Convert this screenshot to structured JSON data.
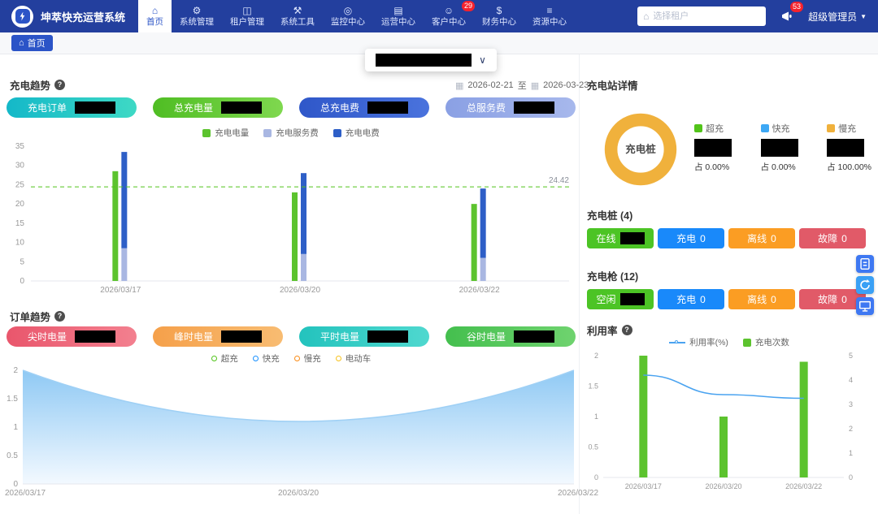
{
  "theme": {
    "navbar_bg": "#233f9e",
    "primary": "#2b54c7",
    "badge_red": "#f5222d"
  },
  "icons": {
    "help": "?",
    "home": "⌂",
    "calendar": "▦",
    "chevron_down": "∨",
    "caret_down": "▼",
    "building": "⌂"
  },
  "header": {
    "app_title": "坤萃快充运营系统",
    "nav_items": [
      {
        "label": "首页",
        "icon": "home-icon",
        "glyph": "⌂",
        "active": true
      },
      {
        "label": "系统管理",
        "icon": "system-settings-icon",
        "glyph": "⚙"
      },
      {
        "label": "租户管理",
        "icon": "tenant-icon",
        "glyph": "◫"
      },
      {
        "label": "系统工具",
        "icon": "tools-icon",
        "glyph": "⚒"
      },
      {
        "label": "监控中心",
        "icon": "monitor-center-icon",
        "glyph": "◎"
      },
      {
        "label": "运营中心",
        "icon": "operations-icon",
        "glyph": "▤"
      },
      {
        "label": "客户中心",
        "icon": "customer-icon",
        "glyph": "☺",
        "badge": "29"
      },
      {
        "label": "财务中心",
        "icon": "finance-icon",
        "glyph": "$"
      },
      {
        "label": "资源中心",
        "icon": "resource-icon",
        "glyph": "≡"
      }
    ],
    "tenant_search_placeholder": "选择租户",
    "notice_badge": "53",
    "user_name": "超级管理员"
  },
  "breadcrumb": {
    "home_label": "首页"
  },
  "charge_trend": {
    "title": "充电趋势",
    "date_from": "2026-02-21",
    "date_separator": "至",
    "date_to": "2026-03-23",
    "stats": [
      {
        "label": "充电订单",
        "color1": "#14b8c8",
        "color2": "#3ed9c5",
        "value_redacted": true
      },
      {
        "label": "总充电量",
        "color1": "#4fbd23",
        "color2": "#7fd84f",
        "value_redacted": true
      },
      {
        "label": "总充电费",
        "color1": "#2f57c9",
        "color2": "#4a73dd",
        "value_redacted": true
      },
      {
        "label": "总服务费",
        "color1": "#8aa0e4",
        "color2": "#a7b8ec",
        "value_redacted": true
      }
    ]
  },
  "order_trend": {
    "title": "订单趋势",
    "stats": [
      {
        "label": "尖时电量",
        "color1": "#e9566c",
        "color2": "#f3808f",
        "value_redacted": true
      },
      {
        "label": "峰时电量",
        "color1": "#f5a04a",
        "color2": "#f8bc72",
        "value_redacted": true
      },
      {
        "label": "平时电量",
        "color1": "#23c3bd",
        "color2": "#4fd8cf",
        "value_redacted": true
      },
      {
        "label": "谷时电量",
        "color1": "#44bf4e",
        "color2": "#6fd36f",
        "value_redacted": true
      }
    ]
  },
  "station_detail": {
    "title": "充电站详情",
    "pile_title": "充电桩 (4)",
    "gun_title": "充电枪 (12)",
    "pile_buttons": [
      {
        "label": "在线",
        "color": "#4cc425",
        "value_redacted": true
      },
      {
        "label": "充电",
        "value": "0",
        "color": "#1989fa"
      },
      {
        "label": "离线",
        "value": "0",
        "color": "#fb9d23"
      },
      {
        "label": "故障",
        "value": "0",
        "color": "#e15a68"
      }
    ],
    "gun_buttons": [
      {
        "label": "空闲",
        "color": "#4cc425",
        "value_redacted": true
      },
      {
        "label": "充电",
        "value": "0",
        "color": "#1989fa"
      },
      {
        "label": "离线",
        "value": "0",
        "color": "#fb9d23"
      },
      {
        "label": "故障",
        "value": "0",
        "color": "#e15a68"
      }
    ]
  },
  "utilization": {
    "title": "利用率"
  },
  "side_tools": [
    {
      "name": "form",
      "color": "#3e78f2"
    },
    {
      "name": "refresh",
      "color": "#3aa0f5"
    },
    {
      "name": "monitor",
      "color": "#3e78f2"
    }
  ],
  "chart_data": [
    {
      "id": "charge-trend-bar",
      "type": "bar",
      "title": "充电趋势",
      "categories": [
        "2026/03/17",
        "2026/03/20",
        "2026/03/22"
      ],
      "series": [
        {
          "name": "充电电量",
          "color": "#5cc32e",
          "values": [
            28.5,
            23,
            20
          ]
        },
        {
          "name": "充电服务费",
          "color": "#a9b7e2",
          "values": [
            8.5,
            7,
            6
          ],
          "stack": "fee"
        },
        {
          "name": "充电电费",
          "color": "#2e5fc7",
          "values": [
            25,
            21,
            18
          ],
          "stack": "fee"
        }
      ],
      "ylim": [
        0,
        35
      ],
      "yticks": [
        0,
        5,
        10,
        15,
        20,
        25,
        30,
        35
      ],
      "reference_line": {
        "value": 24.42,
        "label": "24.42",
        "color": "#52c41a",
        "style": "dashed"
      },
      "legend_position": "top",
      "grid": false
    },
    {
      "id": "order-trend-area",
      "type": "area",
      "legend": [
        {
          "name": "超充",
          "color": "#52c41a"
        },
        {
          "name": "快充",
          "color": "#1890ff"
        },
        {
          "name": "慢充",
          "color": "#fa8c16"
        },
        {
          "name": "电动车",
          "color": "#f7c21e"
        }
      ],
      "x": [
        "2026/03/17",
        "2026/03/20",
        "2026/03/22"
      ],
      "series": [
        {
          "name": "快充",
          "color_top": "#8fc9f4",
          "color_bottom": "#f3f9ff",
          "color_line": "#9fd0f5",
          "values": [
            2,
            1.1,
            2
          ],
          "smooth": true
        }
      ],
      "ylim": [
        0,
        2
      ],
      "yticks": [
        0,
        0.5,
        1,
        1.5,
        2
      ],
      "grid": false
    },
    {
      "id": "station-pile-donut",
      "type": "pie",
      "center_label": "充电桩",
      "slices": [
        {
          "name": "超充",
          "pct": 0,
          "pct_label": "占 0.00%",
          "color": "#52c41a",
          "value_redacted": true
        },
        {
          "name": "快充",
          "pct": 0,
          "pct_label": "占 0.00%",
          "color": "#3da8f5",
          "value_redacted": true
        },
        {
          "name": "慢充",
          "pct": 100,
          "pct_label": "占 100.00%",
          "color": "#f0b13c",
          "value_redacted": true
        }
      ]
    },
    {
      "id": "utilization-combo",
      "type": "bar",
      "title": "利用率",
      "categories": [
        "2026/03/17",
        "2026/03/20",
        "2026/03/22"
      ],
      "bar_series": {
        "name": "充电次数",
        "color": "#5cc32e",
        "axis": "left",
        "values": [
          2,
          1,
          1.9
        ]
      },
      "line_series": {
        "name": "利用率(%)",
        "color": "#4aa3f0",
        "axis": "right",
        "values": [
          4.2,
          3.4,
          3.25
        ]
      },
      "left_ylim": [
        0,
        2
      ],
      "left_yticks": [
        0,
        0.5,
        1,
        1.5,
        2
      ],
      "right_ylim": [
        0,
        5
      ],
      "right_yticks": [
        0,
        1,
        2,
        3,
        4,
        5
      ],
      "grid": false
    }
  ]
}
